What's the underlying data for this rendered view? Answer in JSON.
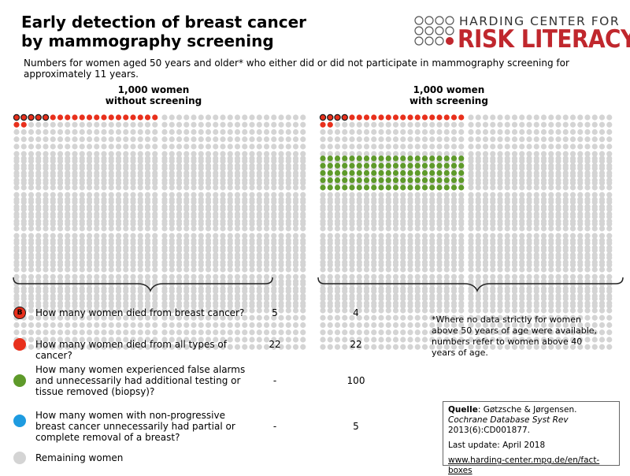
{
  "header": {
    "title_line1": "Early detection of breast cancer",
    "title_line2": "by mammography screening",
    "subtitle": "Numbers for women aged 50 years and older* who either did or did not participate in mammography screening for approximately 11 years."
  },
  "logo": {
    "line1": "HARDING CENTER FOR",
    "line2": "RISK LITERACY"
  },
  "chart_data": {
    "type": "icon-array",
    "groups": [
      {
        "label_line1": "1,000 women",
        "label_line2": "without screening",
        "total": 1000,
        "counts": {
          "breast_cancer_deaths": 5,
          "all_cancer_deaths": 22,
          "false_alarms": 0,
          "overdiagnosis": 0
        }
      },
      {
        "label_line1": "1,000 women",
        "label_line2": "with screening",
        "total": 1000,
        "counts": {
          "breast_cancer_deaths": 4,
          "all_cancer_deaths": 22,
          "false_alarms": 100,
          "overdiagnosis": 5
        }
      }
    ],
    "colors": {
      "breast_cancer": "#e8301c",
      "all_cancer": "#e8301c",
      "false_alarm": "#5e9a2a",
      "overdiagnosis": "#1e9be0",
      "remaining": "#d4d4d4",
      "marker_outline": "#1a1a1a"
    },
    "legend": [
      {
        "icon": "breast-cancer-death-icon",
        "marker_letter": "B",
        "question": "How many women died from breast cancer?",
        "without": "5",
        "with": "4"
      },
      {
        "icon": "cancer-death-icon",
        "question": "How many women died from all types of cancer?",
        "without": "22",
        "with": "22"
      },
      {
        "icon": "false-alarm-icon",
        "question": "How many women experienced false alarms and unnecessarily had additional testing or tissue removed (biopsy)?",
        "without": "-",
        "with": "100"
      },
      {
        "icon": "overdiagnosis-icon",
        "question": "How many women with non-progressive breast cancer unnecessarily had partial or complete removal of a breast?",
        "without": "-",
        "with": "5"
      },
      {
        "icon": "remaining-women-icon",
        "question": "Remaining women",
        "without": "",
        "with": ""
      }
    ]
  },
  "footnote": "*Where no data strictly for women above 50 years of age were available, numbers refer to women above 40 years of age.",
  "source": {
    "label": "Quelle",
    "authors": ": Gøtzsche & Jørgensen. ",
    "journal": "Cochrane Database Syst Rev",
    "ref": " 2013(6):CD001877.",
    "updated": "Last update: April 2018",
    "url": "www.harding-center.mpg.de/en/fact-boxes"
  }
}
